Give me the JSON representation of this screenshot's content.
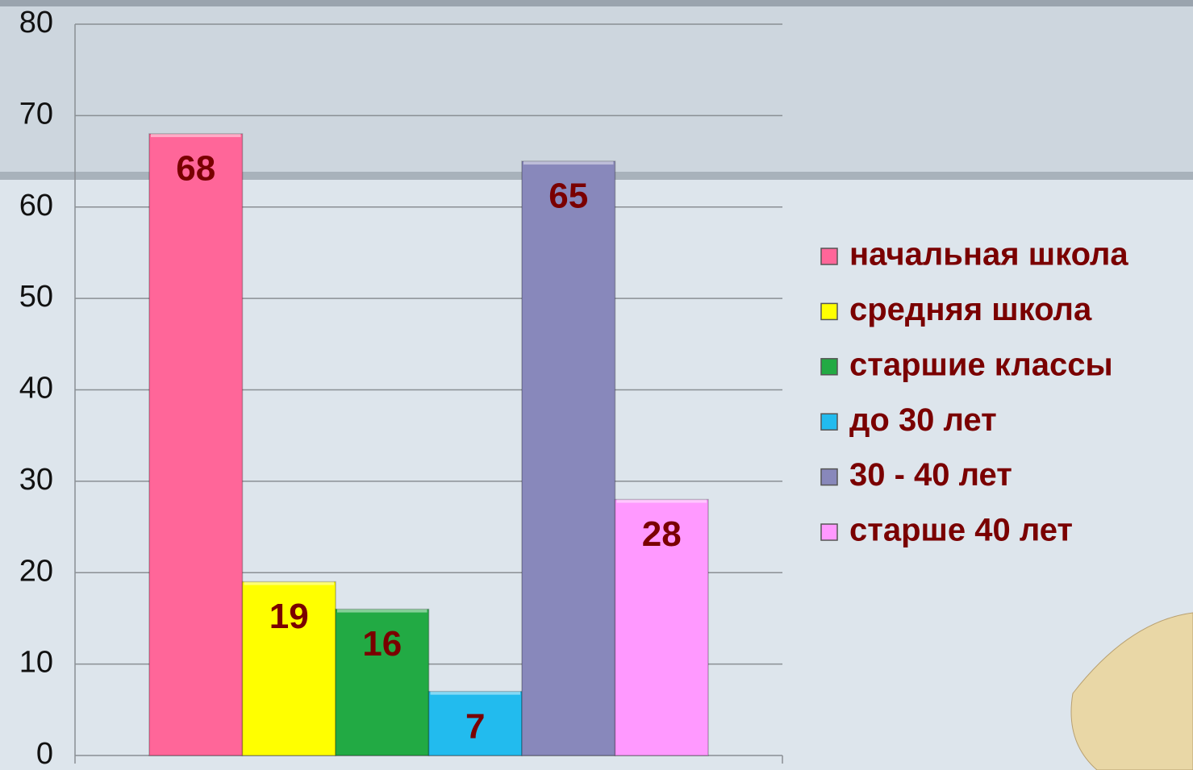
{
  "chart_data": {
    "type": "bar",
    "categories": [
      null
    ],
    "series": [
      {
        "name": "начальная школа",
        "color": "#ff6699",
        "values": [
          68
        ]
      },
      {
        "name": "средняя школа",
        "color": "#ffff00",
        "values": [
          19
        ]
      },
      {
        "name": "старшие классы",
        "color": "#22aa44",
        "values": [
          16
        ]
      },
      {
        "name": "до 30 лет",
        "color": "#22bbee",
        "values": [
          7
        ]
      },
      {
        "name": "30 - 40 лет",
        "color": "#8888bb",
        "values": [
          65
        ]
      },
      {
        "name": "старше 40 лет",
        "color": "#ff99ff",
        "values": [
          28
        ]
      }
    ],
    "ylim": [
      0,
      80
    ],
    "yticks": [
      0,
      10,
      20,
      30,
      40,
      50,
      60,
      70,
      80
    ],
    "grid": true,
    "legend": "right",
    "label_color": "#7a0000"
  }
}
